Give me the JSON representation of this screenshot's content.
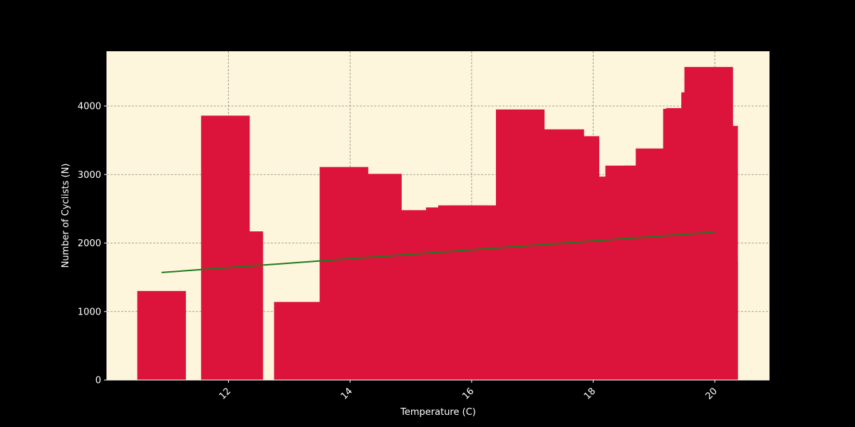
{
  "colors": {
    "figure_background": "#000000",
    "plot_background": "#fdf6dc",
    "bar": "#dc143c",
    "trend_line": "#1e7a1e",
    "grid": "#8a8a7a",
    "text": "#ffffff"
  },
  "chart_data": {
    "type": "bar",
    "title": "",
    "xlabel": "Temperature (C)",
    "ylabel": "Number of Cyclists (N)",
    "xlim": [
      10.0,
      20.9
    ],
    "ylim": [
      0,
      4800
    ],
    "x_ticks": [
      12,
      14,
      16,
      18,
      20
    ],
    "y_ticks": [
      0,
      1000,
      2000,
      3000,
      4000
    ],
    "x_tick_rotation_deg": 45,
    "grid": true,
    "bar_width": 0.8,
    "bars": [
      {
        "x": 10.9,
        "value": 1300
      },
      {
        "x": 11.95,
        "value": 3860
      },
      {
        "x": 12.17,
        "value": 2170
      },
      {
        "x": 13.15,
        "value": 1140
      },
      {
        "x": 13.9,
        "value": 3110
      },
      {
        "x": 14.45,
        "value": 3010
      },
      {
        "x": 15.0,
        "value": 2480
      },
      {
        "x": 15.0,
        "value": 2090
      },
      {
        "x": 15.65,
        "value": 2520
      },
      {
        "x": 15.85,
        "value": 2550
      },
      {
        "x": 16.05,
        "value": 2550
      },
      {
        "x": 16.8,
        "value": 3950
      },
      {
        "x": 17.45,
        "value": 3660
      },
      {
        "x": 17.7,
        "value": 3560
      },
      {
        "x": 18.0,
        "value": 2970
      },
      {
        "x": 18.3,
        "value": 2680
      },
      {
        "x": 18.6,
        "value": 3130
      },
      {
        "x": 18.9,
        "value": 3130
      },
      {
        "x": 19.1,
        "value": 3380
      },
      {
        "x": 19.55,
        "value": 3960
      },
      {
        "x": 19.6,
        "value": 3970
      },
      {
        "x": 19.85,
        "value": 4200
      },
      {
        "x": 19.85,
        "value": 4180
      },
      {
        "x": 19.9,
        "value": 4570
      },
      {
        "x": 19.98,
        "value": 3710
      },
      {
        "x": 19.98,
        "value": 1720
      }
    ],
    "trend_line": {
      "x": [
        10.9,
        20.0
      ],
      "y": [
        1570,
        2160
      ]
    }
  }
}
